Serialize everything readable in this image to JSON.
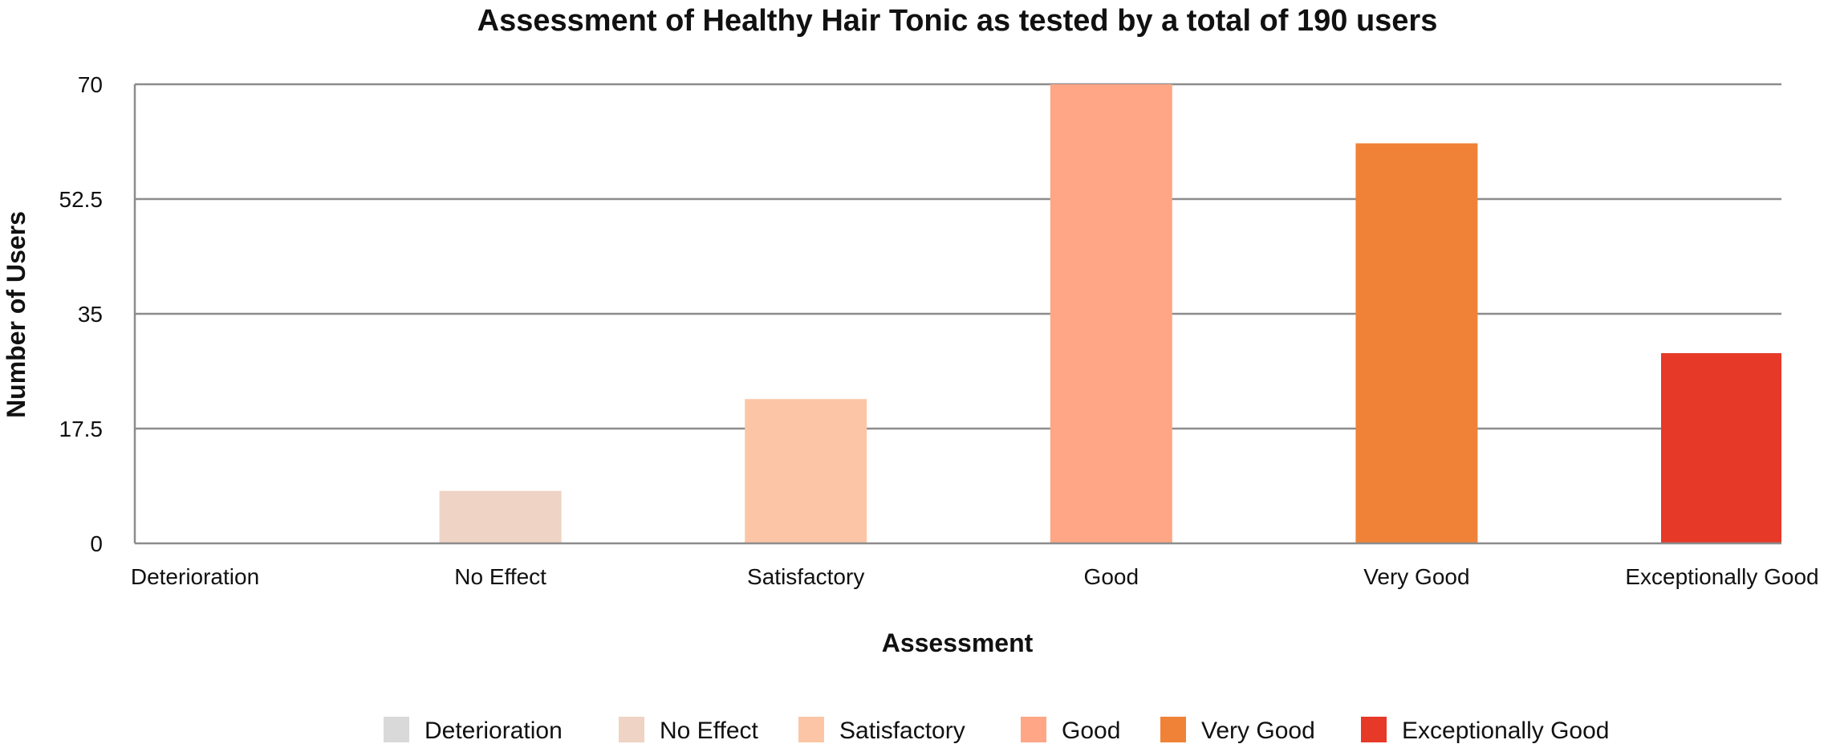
{
  "chart_data": {
    "type": "bar",
    "title": "Assessment of Healthy Hair Tonic as tested by a total of 190 users",
    "xlabel": "Assessment",
    "ylabel": "Number of Users",
    "categories": [
      "Deterioration",
      "No Effect",
      "Satisfactory",
      "Good",
      "Very Good",
      "Exceptionally Good"
    ],
    "values": [
      0,
      8,
      22,
      70,
      61,
      29
    ],
    "colors": [
      "#d9d9d9",
      "#efd3c5",
      "#fcc6a6",
      "#fea685",
      "#f08238",
      "#e63928"
    ],
    "ylim": [
      0,
      70
    ],
    "yticks": [
      0,
      17.5,
      35,
      52.5,
      70
    ],
    "ytick_labels": [
      "0",
      "17.5",
      "35",
      "52.5",
      "70"
    ],
    "grid": true,
    "legend_position": "bottom"
  }
}
